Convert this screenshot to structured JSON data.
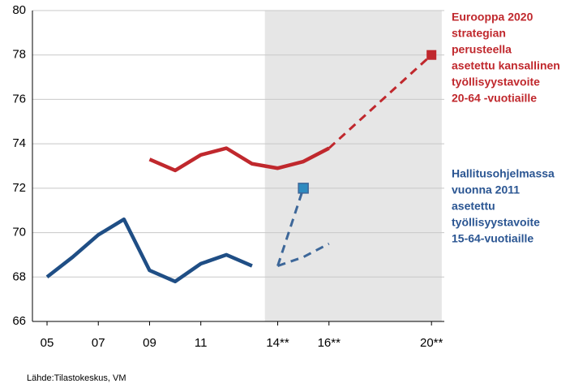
{
  "chart_data": {
    "type": "line",
    "xlim": [
      4.43,
      20.5
    ],
    "ylim": [
      66,
      80
    ],
    "yticks": [
      66,
      68,
      70,
      72,
      74,
      76,
      78,
      80
    ],
    "xticks": [
      {
        "value": 5,
        "label": "05"
      },
      {
        "value": 7,
        "label": "07"
      },
      {
        "value": 9,
        "label": "09"
      },
      {
        "value": 11,
        "label": "11"
      },
      {
        "value": 14,
        "label": "14**"
      },
      {
        "value": 16,
        "label": "16**"
      },
      {
        "value": 20,
        "label": "20**"
      }
    ],
    "grid": true,
    "shade": [
      13.5,
      20.4
    ],
    "shade_color": "#e6e6e6",
    "series": [
      {
        "color": "#c0282d",
        "style": "solid",
        "x": [
          9,
          10,
          11,
          12,
          13,
          14,
          15,
          16
        ],
        "values": [
          73.3,
          72.8,
          73.5,
          73.8,
          73.1,
          72.9,
          73.2,
          73.8
        ]
      },
      {
        "color": "#c0282d",
        "style": "dashed",
        "x": [
          16,
          20
        ],
        "values": [
          73.8,
          78
        ]
      },
      {
        "color": "#c0282d",
        "style": "marker",
        "x": [
          20
        ],
        "values": [
          78
        ]
      },
      {
        "color": "#1f4e85",
        "style": "solid",
        "x": [
          5,
          6,
          7,
          8,
          9,
          10,
          11,
          12,
          13
        ],
        "values": [
          68,
          68.9,
          69.9,
          70.6,
          68.3,
          67.8,
          68.6,
          69.0,
          68.5
        ]
      },
      {
        "color": "#3d6799",
        "style": "dashed",
        "x": [
          14,
          15
        ],
        "values": [
          68.5,
          72
        ]
      },
      {
        "color": "#3d6799",
        "style": "dashed",
        "x": [
          14,
          15,
          16
        ],
        "values": [
          68.5,
          68.9,
          69.5
        ]
      },
      {
        "color": "#2e8bc0",
        "style": "marker",
        "x": [
          15
        ],
        "values": [
          72
        ]
      }
    ],
    "annotations": [
      {
        "color": "#c0282d",
        "lines": [
          "Eurooppa 2020",
          "strategian",
          "perusteella",
          "asetettu kansallinen",
          "työllisyystavoite",
          "20-64 -vuotiaille"
        ]
      },
      {
        "color": "#2a5592",
        "lines": [
          "Hallitusohjelmassa",
          "vuonna 2011",
          "asetettu",
          " työllisyystavoite",
          " 15-64-vuotiaille"
        ]
      }
    ],
    "source": "Lähde:Tilastokeskus, VM"
  }
}
